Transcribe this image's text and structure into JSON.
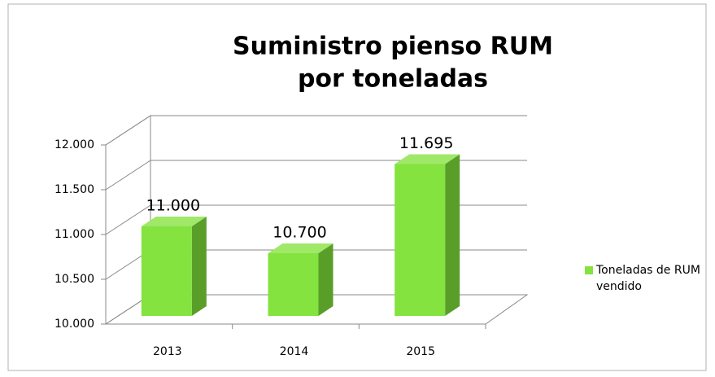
{
  "chart_data": {
    "type": "bar3d",
    "title": [
      "Suministro pienso RUM",
      "por toneladas"
    ],
    "categories": [
      "2013",
      "2014",
      "2015"
    ],
    "series": [
      {
        "name": "Toneladas de RUM vendido",
        "color": "#84e33e",
        "values": [
          11000,
          10700,
          11695
        ],
        "value_labels": [
          "11.000",
          "10.700",
          "11.695"
        ]
      }
    ],
    "ylim": [
      10000,
      12000
    ],
    "yticks": [
      {
        "value": 10000,
        "label": "10.000"
      },
      {
        "value": 10500,
        "label": "10.500"
      },
      {
        "value": 11000,
        "label": "11.000"
      },
      {
        "value": 11500,
        "label": "11.500"
      },
      {
        "value": 12000,
        "label": "12.000"
      }
    ],
    "grid": true,
    "legend": "right"
  }
}
